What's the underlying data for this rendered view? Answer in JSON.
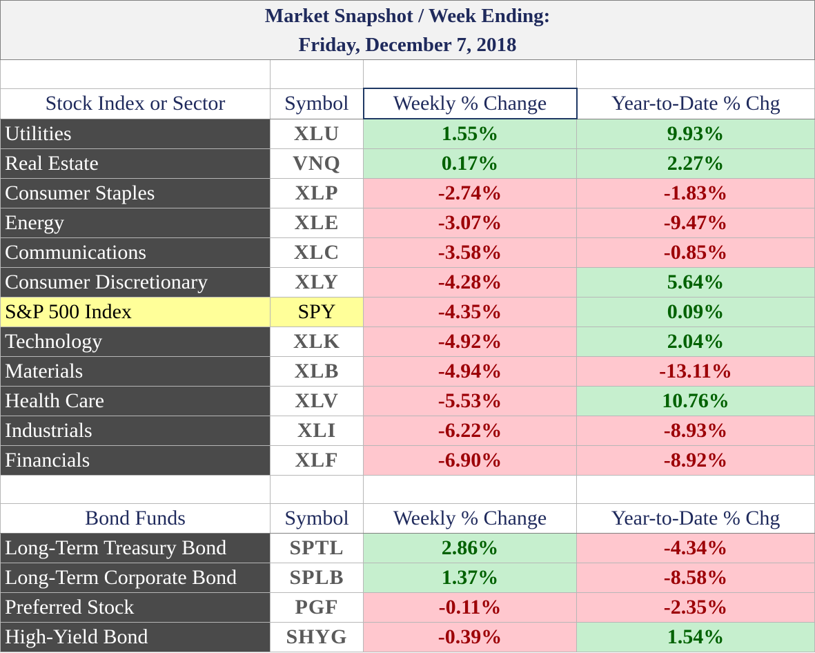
{
  "title": {
    "line1": "Market Snapshot / Week Ending:",
    "line2": "Friday, December 7, 2018"
  },
  "colors": {
    "positive_bg": "#c6efce",
    "positive_text": "#006100",
    "negative_bg": "#ffc7ce",
    "negative_text": "#9c0006",
    "name_bg": "#4a4a4a",
    "highlight_bg": "#ffff99",
    "header_text": "#1f2a5c"
  },
  "stocks": {
    "headers": {
      "name": "Stock Index or Sector",
      "symbol": "Symbol",
      "weekly": "Weekly % Change",
      "ytd": "Year-to-Date % Chg"
    },
    "rows": [
      {
        "name": "Utilities",
        "symbol": "XLU",
        "weekly": "1.55%",
        "ytd": "9.93%"
      },
      {
        "name": "Real Estate",
        "symbol": "VNQ",
        "weekly": "0.17%",
        "ytd": "2.27%"
      },
      {
        "name": "Consumer Staples",
        "symbol": "XLP",
        "weekly": "-2.74%",
        "ytd": "-1.83%"
      },
      {
        "name": "Energy",
        "symbol": "XLE",
        "weekly": "-3.07%",
        "ytd": "-9.47%"
      },
      {
        "name": "Communications",
        "symbol": "XLC",
        "weekly": "-3.58%",
        "ytd": "-0.85%"
      },
      {
        "name": "Consumer Discretionary",
        "symbol": "XLY",
        "weekly": "-4.28%",
        "ytd": "5.64%"
      },
      {
        "name": "S&P 500 Index",
        "symbol": "SPY",
        "weekly": "-4.35%",
        "ytd": "0.09%"
      },
      {
        "name": "Technology",
        "symbol": "XLK",
        "weekly": "-4.92%",
        "ytd": "2.04%"
      },
      {
        "name": "Materials",
        "symbol": "XLB",
        "weekly": "-4.94%",
        "ytd": "-13.11%"
      },
      {
        "name": "Health Care",
        "symbol": "XLV",
        "weekly": "-5.53%",
        "ytd": "10.76%"
      },
      {
        "name": "Industrials",
        "symbol": "XLI",
        "weekly": "-6.22%",
        "ytd": "-8.93%"
      },
      {
        "name": "Financials",
        "symbol": "XLF",
        "weekly": "-6.90%",
        "ytd": "-8.92%"
      }
    ]
  },
  "bonds": {
    "headers": {
      "name": "Bond Funds",
      "symbol": "Symbol",
      "weekly": "Weekly % Change",
      "ytd": "Year-to-Date % Chg"
    },
    "rows": [
      {
        "name": "Long-Term Treasury Bond",
        "symbol": "SPTL",
        "weekly": "2.86%",
        "ytd": "-4.34%"
      },
      {
        "name": "Long-Term Corporate Bond",
        "symbol": "SPLB",
        "weekly": "1.37%",
        "ytd": "-8.58%"
      },
      {
        "name": "Preferred Stock",
        "symbol": "PGF",
        "weekly": "-0.11%",
        "ytd": "-2.35%"
      },
      {
        "name": "High-Yield Bond",
        "symbol": "SHYG",
        "weekly": "-0.39%",
        "ytd": "1.54%"
      }
    ]
  }
}
